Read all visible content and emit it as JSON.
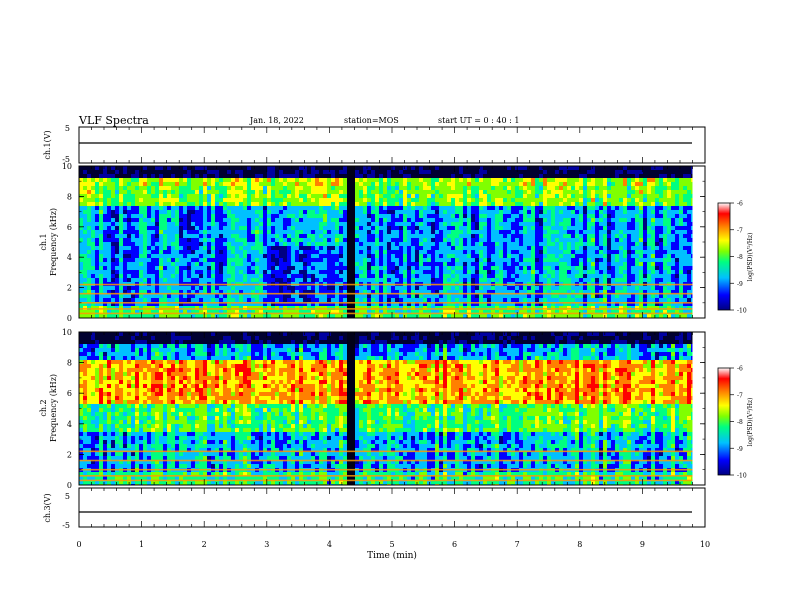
{
  "header": {
    "title": "VLF Spectra",
    "date": "Jan. 18, 2022",
    "station": "station=MOS",
    "start": "start UT =  0 : 40 : 1"
  },
  "chart_data": [
    {
      "type": "line",
      "ylabel": "ch.1(V)",
      "ylim": [
        -5,
        5
      ],
      "yticks": [
        "5",
        "-5"
      ],
      "series": [
        {
          "x": [
            0,
            9.8
          ],
          "values": [
            0,
            0
          ]
        }
      ]
    },
    {
      "type": "heatmap",
      "ylabel": "Frequency (kHz)",
      "channel_label": "ch.1",
      "ylim": [
        0,
        10
      ],
      "yticks": [
        "0",
        "2",
        "4",
        "6",
        "8",
        "10"
      ],
      "xlim": [
        0,
        10
      ],
      "data_extent_min": 9.8,
      "dark_band_min": [
        4.22,
        4.4
      ],
      "colorbar": {
        "label": "log(PSD)(V²/Hz)",
        "range": [
          -10,
          -6
        ],
        "ticks": [
          "-6",
          "-7",
          "-8",
          "-9",
          "-10"
        ],
        "colors": [
          "#000080",
          "#0000ff",
          "#00c0ff",
          "#00ff80",
          "#80ff00",
          "#ffff00",
          "#ff8000",
          "#ff0000",
          "#ffffff"
        ]
      }
    },
    {
      "type": "heatmap",
      "ylabel": "Frequency (kHz)",
      "channel_label": "ch.2",
      "ylim": [
        0,
        10
      ],
      "yticks": [
        "0",
        "2",
        "4",
        "6",
        "8",
        "10"
      ],
      "xlim": [
        0,
        10
      ],
      "data_extent_min": 9.8,
      "dark_band_min": [
        4.22,
        4.4
      ],
      "colorbar": {
        "label": "log(PSD)(V²/Hz)",
        "range": [
          -10,
          -6
        ],
        "ticks": [
          "-6",
          "-7",
          "-8",
          "-9",
          "-10"
        ],
        "colors": [
          "#000080",
          "#0000ff",
          "#00c0ff",
          "#00ff80",
          "#80ff00",
          "#ffff00",
          "#ff8000",
          "#ff0000",
          "#ffffff"
        ]
      }
    },
    {
      "type": "line",
      "ylabel": "ch.3(V)",
      "ylim": [
        -5,
        5
      ],
      "yticks": [
        "5",
        "-5"
      ],
      "xlabel": "Time (min)",
      "xlim": [
        0,
        10
      ],
      "xticks": [
        "0",
        "1",
        "2",
        "3",
        "4",
        "5",
        "6",
        "7",
        "8",
        "9",
        "10"
      ],
      "series": [
        {
          "x": [
            0,
            9.8
          ],
          "values": [
            0,
            0
          ]
        }
      ]
    }
  ]
}
